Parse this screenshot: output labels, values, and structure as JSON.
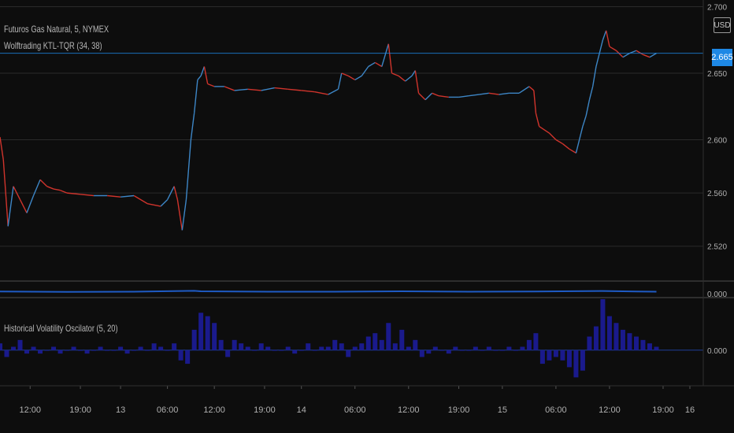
{
  "legend": {
    "symbol": "Futuros Gas Natural, 5, NYMEX",
    "indicator1": "Wolftrading KTL-TQR (34, 38)",
    "indicator2": "Historical Volatility Oscilator (5, 20)"
  },
  "price_axis": {
    "currency": "USD",
    "last_price_label": "2.665"
  },
  "colors": {
    "background": "#0d0d0d",
    "up": "#3d86c6",
    "down": "#d0342c",
    "accent": "#1e88e5",
    "volatility_line": "#1f5bc4",
    "oscillator": "#1a1a8c"
  },
  "chart_data": [
    {
      "type": "line",
      "title": "Futuros Gas Natural, 5, NYMEX",
      "ylim": [
        2.495,
        2.705
      ],
      "y_ticks": [
        {
          "value": 2.7,
          "label": "2.700"
        },
        {
          "value": 2.65,
          "label": "2.650"
        },
        {
          "value": 2.6,
          "label": "2.600"
        },
        {
          "value": 2.56,
          "label": "2.560"
        },
        {
          "value": 2.52,
          "label": "2.520"
        }
      ],
      "x_range": [
        0,
        10.5
      ],
      "x_ticks": [
        {
          "value": 0.45,
          "label": "12:00"
        },
        {
          "value": 1.2,
          "label": "19:00"
        },
        {
          "value": 1.8,
          "label": "13"
        },
        {
          "value": 2.5,
          "label": "06:00"
        },
        {
          "value": 3.2,
          "label": "12:00"
        },
        {
          "value": 3.95,
          "label": "19:00"
        },
        {
          "value": 4.5,
          "label": "14"
        },
        {
          "value": 5.3,
          "label": "06:00"
        },
        {
          "value": 6.1,
          "label": "12:00"
        },
        {
          "value": 6.85,
          "label": "19:00"
        },
        {
          "value": 7.5,
          "label": "15"
        },
        {
          "value": 8.3,
          "label": "06:00"
        },
        {
          "value": 9.1,
          "label": "12:00"
        },
        {
          "value": 9.9,
          "label": "19:00"
        },
        {
          "value": 10.3,
          "label": "16"
        }
      ],
      "series": [
        {
          "points": [
            [
              0.0,
              2.602
            ],
            [
              0.05,
              2.585
            ],
            [
              0.12,
              2.535
            ],
            [
              0.2,
              2.565
            ],
            [
              0.3,
              2.555
            ],
            [
              0.4,
              2.545
            ],
            [
              0.5,
              2.558
            ],
            [
              0.6,
              2.57
            ],
            [
              0.7,
              2.565
            ],
            [
              0.8,
              2.563
            ],
            [
              0.9,
              2.562
            ],
            [
              1.0,
              2.56
            ],
            [
              1.2,
              2.559
            ],
            [
              1.4,
              2.558
            ],
            [
              1.6,
              2.558
            ],
            [
              1.8,
              2.557
            ],
            [
              2.0,
              2.558
            ],
            [
              2.2,
              2.552
            ],
            [
              2.4,
              2.55
            ],
            [
              2.5,
              2.555
            ],
            [
              2.6,
              2.565
            ],
            [
              2.65,
              2.555
            ],
            [
              2.72,
              2.532
            ],
            [
              2.78,
              2.555
            ],
            [
              2.85,
              2.6
            ],
            [
              2.9,
              2.62
            ],
            [
              2.95,
              2.645
            ],
            [
              3.0,
              2.648
            ],
            [
              3.05,
              2.655
            ],
            [
              3.1,
              2.642
            ],
            [
              3.2,
              2.64
            ],
            [
              3.35,
              2.64
            ],
            [
              3.5,
              2.637
            ],
            [
              3.7,
              2.638
            ],
            [
              3.9,
              2.637
            ],
            [
              4.1,
              2.639
            ],
            [
              4.3,
              2.638
            ],
            [
              4.5,
              2.637
            ],
            [
              4.7,
              2.636
            ],
            [
              4.9,
              2.634
            ],
            [
              5.05,
              2.638
            ],
            [
              5.1,
              2.65
            ],
            [
              5.2,
              2.648
            ],
            [
              5.3,
              2.645
            ],
            [
              5.4,
              2.648
            ],
            [
              5.5,
              2.655
            ],
            [
              5.6,
              2.658
            ],
            [
              5.7,
              2.655
            ],
            [
              5.8,
              2.672
            ],
            [
              5.85,
              2.65
            ],
            [
              5.95,
              2.648
            ],
            [
              6.05,
              2.644
            ],
            [
              6.15,
              2.648
            ],
            [
              6.2,
              2.652
            ],
            [
              6.25,
              2.635
            ],
            [
              6.35,
              2.63
            ],
            [
              6.45,
              2.635
            ],
            [
              6.55,
              2.633
            ],
            [
              6.7,
              2.632
            ],
            [
              6.85,
              2.632
            ],
            [
              7.0,
              2.633
            ],
            [
              7.15,
              2.634
            ],
            [
              7.3,
              2.635
            ],
            [
              7.45,
              2.634
            ],
            [
              7.6,
              2.635
            ],
            [
              7.75,
              2.635
            ],
            [
              7.9,
              2.64
            ],
            [
              7.97,
              2.637
            ],
            [
              8.0,
              2.62
            ],
            [
              8.05,
              2.61
            ],
            [
              8.2,
              2.605
            ],
            [
              8.3,
              2.6
            ],
            [
              8.4,
              2.597
            ],
            [
              8.5,
              2.593
            ],
            [
              8.6,
              2.59
            ],
            [
              8.65,
              2.6
            ],
            [
              8.7,
              2.61
            ],
            [
              8.75,
              2.618
            ],
            [
              8.8,
              2.63
            ],
            [
              8.85,
              2.64
            ],
            [
              8.9,
              2.655
            ],
            [
              8.95,
              2.665
            ],
            [
              9.0,
              2.675
            ],
            [
              9.05,
              2.682
            ],
            [
              9.1,
              2.67
            ],
            [
              9.2,
              2.667
            ],
            [
              9.3,
              2.662
            ],
            [
              9.4,
              2.665
            ],
            [
              9.5,
              2.667
            ],
            [
              9.6,
              2.664
            ],
            [
              9.7,
              2.662
            ],
            [
              9.8,
              2.665
            ]
          ]
        }
      ],
      "horizontal_line": 2.665
    },
    {
      "type": "line",
      "ylim": [
        -0.01,
        0.08
      ],
      "y_ticks": [
        {
          "value": 0.0,
          "label": "0.000"
        }
      ],
      "series": [
        {
          "points": [
            [
              0.0,
              0.02
            ],
            [
              1.0,
              0.018
            ],
            [
              2.0,
              0.019
            ],
            [
              2.9,
              0.025
            ],
            [
              3.0,
              0.022
            ],
            [
              4.0,
              0.019
            ],
            [
              5.0,
              0.019
            ],
            [
              6.0,
              0.022
            ],
            [
              7.0,
              0.019
            ],
            [
              8.0,
              0.02
            ],
            [
              9.0,
              0.024
            ],
            [
              9.5,
              0.02
            ],
            [
              9.8,
              0.019
            ]
          ]
        }
      ]
    },
    {
      "type": "bar",
      "title": "Historical Volatility Oscilator (5, 20)",
      "ylim": [
        -0.1,
        0.15
      ],
      "y_ticks": [
        {
          "value": 0.0,
          "label": "0.000"
        }
      ],
      "x": [
        0.0,
        0.1,
        0.2,
        0.3,
        0.4,
        0.5,
        0.6,
        0.7,
        0.8,
        0.9,
        1.0,
        1.1,
        1.2,
        1.3,
        1.4,
        1.5,
        1.6,
        1.7,
        1.8,
        1.9,
        2.0,
        2.1,
        2.2,
        2.3,
        2.4,
        2.5,
        2.6,
        2.7,
        2.8,
        2.9,
        3.0,
        3.1,
        3.2,
        3.3,
        3.4,
        3.5,
        3.6,
        3.7,
        3.8,
        3.9,
        4.0,
        4.1,
        4.2,
        4.3,
        4.4,
        4.5,
        4.6,
        4.7,
        4.8,
        4.9,
        5.0,
        5.1,
        5.2,
        5.3,
        5.4,
        5.5,
        5.6,
        5.7,
        5.8,
        5.9,
        6.0,
        6.1,
        6.2,
        6.3,
        6.4,
        6.5,
        6.6,
        6.7,
        6.8,
        6.9,
        7.0,
        7.1,
        7.2,
        7.3,
        7.4,
        7.5,
        7.6,
        7.7,
        7.8,
        7.9,
        8.0,
        8.1,
        8.2,
        8.3,
        8.4,
        8.5,
        8.6,
        8.7,
        8.8,
        8.9,
        9.0,
        9.1,
        9.2,
        9.3,
        9.4,
        9.5,
        9.6,
        9.7,
        9.8
      ],
      "values": [
        0.02,
        -0.02,
        0.01,
        0.03,
        -0.01,
        0.01,
        -0.01,
        0.0,
        0.01,
        -0.01,
        0.0,
        0.01,
        0.0,
        -0.01,
        0.0,
        0.01,
        0.0,
        0.0,
        0.01,
        -0.01,
        0.0,
        0.01,
        0.0,
        0.02,
        0.01,
        0.0,
        0.02,
        -0.03,
        -0.04,
        0.06,
        0.11,
        0.1,
        0.08,
        0.03,
        -0.02,
        0.03,
        0.02,
        0.01,
        0.0,
        0.02,
        0.01,
        0.0,
        0.0,
        0.01,
        -0.01,
        0.0,
        0.02,
        0.0,
        0.01,
        0.01,
        0.03,
        0.02,
        -0.02,
        0.01,
        0.02,
        0.04,
        0.05,
        0.03,
        0.08,
        0.02,
        0.06,
        0.01,
        0.03,
        -0.02,
        -0.01,
        0.01,
        0.0,
        -0.01,
        0.01,
        0.0,
        0.0,
        0.01,
        0.0,
        0.01,
        0.0,
        0.0,
        0.01,
        0.0,
        0.01,
        0.03,
        0.05,
        -0.04,
        -0.03,
        -0.02,
        -0.03,
        -0.05,
        -0.08,
        -0.06,
        0.04,
        0.07,
        0.15,
        0.1,
        0.08,
        0.06,
        0.05,
        0.04,
        0.03,
        0.02,
        0.01
      ]
    }
  ]
}
